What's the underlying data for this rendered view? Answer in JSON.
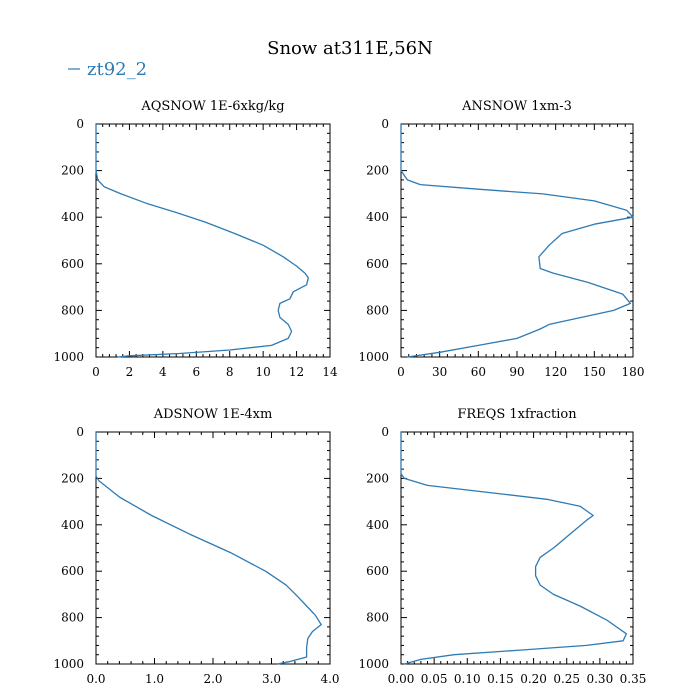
{
  "title": "Snow at311E,56N",
  "legend": {
    "label": "zt92_2",
    "color": "#2E7BB4"
  },
  "chart_data": [
    {
      "type": "line",
      "title": "AQSNOW  1E-6xkg/kg",
      "xlim": [
        0,
        14
      ],
      "xticks": [
        "0",
        "2",
        "4",
        "6",
        "8",
        "10",
        "12",
        "14"
      ],
      "ylim": [
        0,
        1000
      ],
      "yticks": [
        "0",
        "200",
        "400",
        "600",
        "800",
        "1000"
      ],
      "series": [
        {
          "name": "zt92_2",
          "x": [
            0,
            0,
            0.1,
            0.5,
            1.5,
            3.0,
            4.8,
            6.5,
            8.3,
            10.0,
            11.2,
            12.0,
            12.5,
            12.7,
            12.6,
            11.8,
            11.6,
            11.0,
            10.9,
            11.0,
            11.5,
            11.7,
            11.5,
            10.5,
            8.0,
            5.0,
            2.0,
            1.3
          ],
          "y": [
            0,
            200,
            240,
            270,
            300,
            340,
            380,
            420,
            470,
            520,
            570,
            610,
            640,
            660,
            690,
            720,
            750,
            770,
            800,
            830,
            860,
            890,
            920,
            950,
            970,
            985,
            995,
            1000
          ]
        }
      ]
    },
    {
      "type": "line",
      "title": "ANSNOW  1xm-3",
      "xlim": [
        0,
        180
      ],
      "xticks": [
        "0",
        "30",
        "60",
        "90",
        "120",
        "150",
        "180"
      ],
      "ylim": [
        0,
        1000
      ],
      "yticks": [
        "0",
        "200",
        "400",
        "600",
        "800",
        "1000"
      ],
      "series": [
        {
          "name": "zt92_2",
          "x": [
            0,
            0,
            5,
            15,
            60,
            110,
            150,
            175,
            180,
            150,
            125,
            115,
            107,
            108,
            118,
            145,
            172,
            178,
            165,
            140,
            115,
            108,
            90,
            60,
            30,
            5
          ],
          "y": [
            0,
            200,
            240,
            260,
            280,
            300,
            330,
            370,
            400,
            430,
            470,
            520,
            570,
            620,
            640,
            680,
            730,
            770,
            800,
            830,
            860,
            880,
            920,
            950,
            980,
            1000
          ]
        }
      ]
    },
    {
      "type": "line",
      "title": "ADSNOW  1E-4xm",
      "xlim": [
        0,
        4.0
      ],
      "xticks": [
        "0.0",
        "1.0",
        "2.0",
        "3.0",
        "4.0"
      ],
      "ylim": [
        0,
        1000
      ],
      "yticks": [
        "0",
        "200",
        "400",
        "600",
        "800",
        "1000"
      ],
      "series": [
        {
          "name": "zt92_2",
          "x": [
            0,
            0,
            0.05,
            0.4,
            0.95,
            1.6,
            2.3,
            2.9,
            3.25,
            3.45,
            3.6,
            3.75,
            3.85,
            3.7,
            3.62,
            3.6,
            3.6,
            3.3,
            3.1
          ],
          "y": [
            0,
            190,
            210,
            280,
            360,
            440,
            520,
            600,
            660,
            710,
            750,
            790,
            830,
            860,
            890,
            930,
            970,
            990,
            1000
          ]
        }
      ]
    },
    {
      "type": "line",
      "title": "FREQS  1xfraction",
      "xlim": [
        0,
        0.35
      ],
      "xticks": [
        "0.00",
        "0.05",
        "0.10",
        "0.15",
        "0.20",
        "0.25",
        "0.30",
        "0.35"
      ],
      "ylim": [
        0,
        1000
      ],
      "yticks": [
        "0",
        "200",
        "400",
        "600",
        "800",
        "1000"
      ],
      "series": [
        {
          "name": "zt92_2",
          "x": [
            0,
            0,
            0.005,
            0.04,
            0.1,
            0.16,
            0.22,
            0.27,
            0.29,
            0.28,
            0.255,
            0.23,
            0.21,
            0.203,
            0.203,
            0.21,
            0.23,
            0.27,
            0.31,
            0.34,
            0.335,
            0.28,
            0.18,
            0.08,
            0.03,
            0.005
          ],
          "y": [
            0,
            180,
            200,
            230,
            250,
            270,
            290,
            320,
            360,
            380,
            440,
            500,
            540,
            580,
            620,
            660,
            700,
            750,
            810,
            870,
            900,
            920,
            940,
            960,
            980,
            1000
          ]
        }
      ]
    }
  ]
}
